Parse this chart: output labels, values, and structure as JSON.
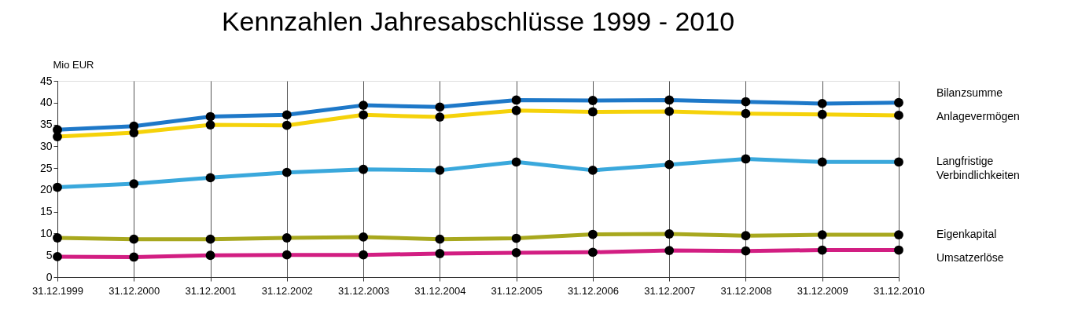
{
  "chart_data": {
    "type": "line",
    "title": "Kennzahlen Jahresabschlüsse 1999 - 2010",
    "ylabel": "Mio EUR",
    "categories": [
      "31.12.1999",
      "31.12.2000",
      "31.12.2001",
      "31.12.2002",
      "31.12.2003",
      "31.12.2004",
      "31.12.2005",
      "31.12.2006",
      "31.12.2007",
      "31.12.2008",
      "31.12.2009",
      "31.12.2010"
    ],
    "series": [
      {
        "name": "Bilanzsumme",
        "color": "#1e78c8",
        "values": [
          33.8,
          34.6,
          36.8,
          37.2,
          39.4,
          39.0,
          40.6,
          40.5,
          40.6,
          40.2,
          39.8,
          40.0
        ]
      },
      {
        "name": "Anlagevermögen",
        "color": "#f5d20a",
        "values": [
          32.2,
          33.1,
          34.9,
          34.8,
          37.2,
          36.7,
          38.2,
          37.9,
          38.0,
          37.5,
          37.3,
          37.1
        ]
      },
      {
        "name": "Langfristige Verbindlichkeiten",
        "color": "#3aa8dc",
        "values": [
          20.6,
          21.4,
          22.8,
          24.0,
          24.7,
          24.5,
          26.4,
          24.5,
          25.8,
          27.1,
          26.4,
          26.4
        ]
      },
      {
        "name": "Eigenkapital",
        "color": "#a8a81e",
        "values": [
          9.0,
          8.7,
          8.7,
          9.0,
          9.2,
          8.7,
          8.9,
          9.8,
          9.9,
          9.5,
          9.7,
          9.7
        ]
      },
      {
        "name": "Umsatzerlöse",
        "color": "#d21e82",
        "values": [
          4.7,
          4.6,
          5.0,
          5.1,
          5.1,
          5.4,
          5.6,
          5.7,
          6.1,
          6.0,
          6.2,
          6.2
        ]
      }
    ],
    "ylim": [
      0,
      45
    ],
    "yticks": [
      0,
      5,
      10,
      15,
      20,
      25,
      30,
      35,
      40,
      45
    ],
    "grid": "x",
    "legend": "right",
    "marker": "circle",
    "line_style": "solid"
  }
}
